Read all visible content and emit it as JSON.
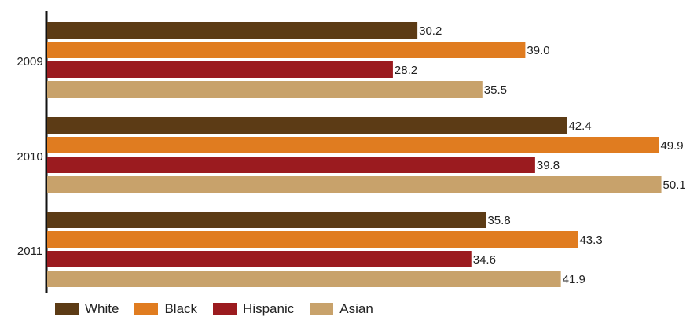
{
  "chart_data": {
    "type": "bar",
    "orientation": "horizontal",
    "categories": [
      "2009",
      "2010",
      "2011"
    ],
    "series": [
      {
        "name": "White",
        "color": "#5c3b15",
        "values": [
          30.2,
          42.4,
          35.8
        ]
      },
      {
        "name": "Black",
        "color": "#e07c20",
        "values": [
          39.0,
          49.9,
          43.3
        ]
      },
      {
        "name": "Hispanic",
        "color": "#9b1b1f",
        "values": [
          28.2,
          39.8,
          34.6
        ]
      },
      {
        "name": "Asian",
        "color": "#c8a26b",
        "values": [
          35.5,
          50.1,
          41.9
        ]
      }
    ],
    "title": "",
    "xlabel": "",
    "ylabel": "",
    "xlim": [
      0,
      51.5
    ],
    "grid": false,
    "legend_position": "bottom-left",
    "data_labels": true
  }
}
